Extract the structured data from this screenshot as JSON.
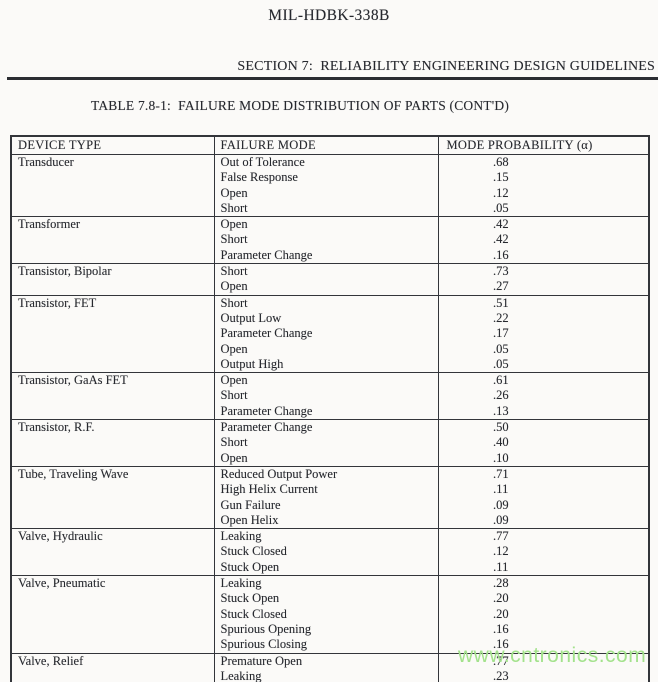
{
  "header": {
    "doc_title": "MIL-HDBK-338B",
    "section_heading": "SECTION 7:  RELIABILITY ENGINEERING DESIGN GUIDELINES",
    "table_title": "TABLE 7.8-1:  FAILURE MODE DISTRIBUTION OF PARTS (CONT'D)"
  },
  "watermark": {
    "text": "www.cntronics.com",
    "color": "#a3e28c"
  },
  "table": {
    "columns": [
      "DEVICE TYPE",
      "FAILURE MODE",
      "MODE PROBABILITY (α)"
    ],
    "groups": [
      {
        "device": "Transducer",
        "modes": [
          {
            "mode": "Out of Tolerance",
            "p": ".68"
          },
          {
            "mode": "False Response",
            "p": ".15"
          },
          {
            "mode": "Open",
            "p": ".12"
          },
          {
            "mode": "Short",
            "p": ".05"
          }
        ]
      },
      {
        "device": "Transformer",
        "modes": [
          {
            "mode": "Open",
            "p": ".42"
          },
          {
            "mode": "Short",
            "p": ".42"
          },
          {
            "mode": "Parameter Change",
            "p": ".16"
          }
        ]
      },
      {
        "device": "Transistor, Bipolar",
        "modes": [
          {
            "mode": "Short",
            "p": ".73"
          },
          {
            "mode": "Open",
            "p": ".27"
          }
        ]
      },
      {
        "device": "Transistor, FET",
        "modes": [
          {
            "mode": "Short",
            "p": ".51"
          },
          {
            "mode": "Output Low",
            "p": ".22"
          },
          {
            "mode": "Parameter Change",
            "p": ".17"
          },
          {
            "mode": "Open",
            "p": ".05"
          },
          {
            "mode": "Output High",
            "p": ".05"
          }
        ]
      },
      {
        "device": "Transistor, GaAs FET",
        "modes": [
          {
            "mode": "Open",
            "p": ".61"
          },
          {
            "mode": "Short",
            "p": ".26"
          },
          {
            "mode": "Parameter Change",
            "p": ".13"
          }
        ]
      },
      {
        "device": "Transistor, R.F.",
        "modes": [
          {
            "mode": "Parameter Change",
            "p": ".50"
          },
          {
            "mode": "Short",
            "p": ".40"
          },
          {
            "mode": "Open",
            "p": ".10"
          }
        ]
      },
      {
        "device": "Tube, Traveling Wave",
        "modes": [
          {
            "mode": "Reduced Output Power",
            "p": ".71"
          },
          {
            "mode": "High Helix Current",
            "p": ".11"
          },
          {
            "mode": "Gun Failure",
            "p": ".09"
          },
          {
            "mode": "Open Helix",
            "p": ".09"
          }
        ]
      },
      {
        "device": "Valve, Hydraulic",
        "modes": [
          {
            "mode": "Leaking",
            "p": ".77"
          },
          {
            "mode": "Stuck Closed",
            "p": ".12"
          },
          {
            "mode": "Stuck Open",
            "p": ".11"
          }
        ]
      },
      {
        "device": "Valve, Pneumatic",
        "modes": [
          {
            "mode": "Leaking",
            "p": ".28"
          },
          {
            "mode": "Stuck Open",
            "p": ".20"
          },
          {
            "mode": "Stuck Closed",
            "p": ".20"
          },
          {
            "mode": "Spurious Opening",
            "p": ".16"
          },
          {
            "mode": "Spurious Closing",
            "p": ".16"
          }
        ]
      },
      {
        "device": "Valve, Relief",
        "modes": [
          {
            "mode": "Premature Open",
            "p": ".77"
          },
          {
            "mode": "Leaking",
            "p": ".23"
          }
        ]
      }
    ]
  }
}
